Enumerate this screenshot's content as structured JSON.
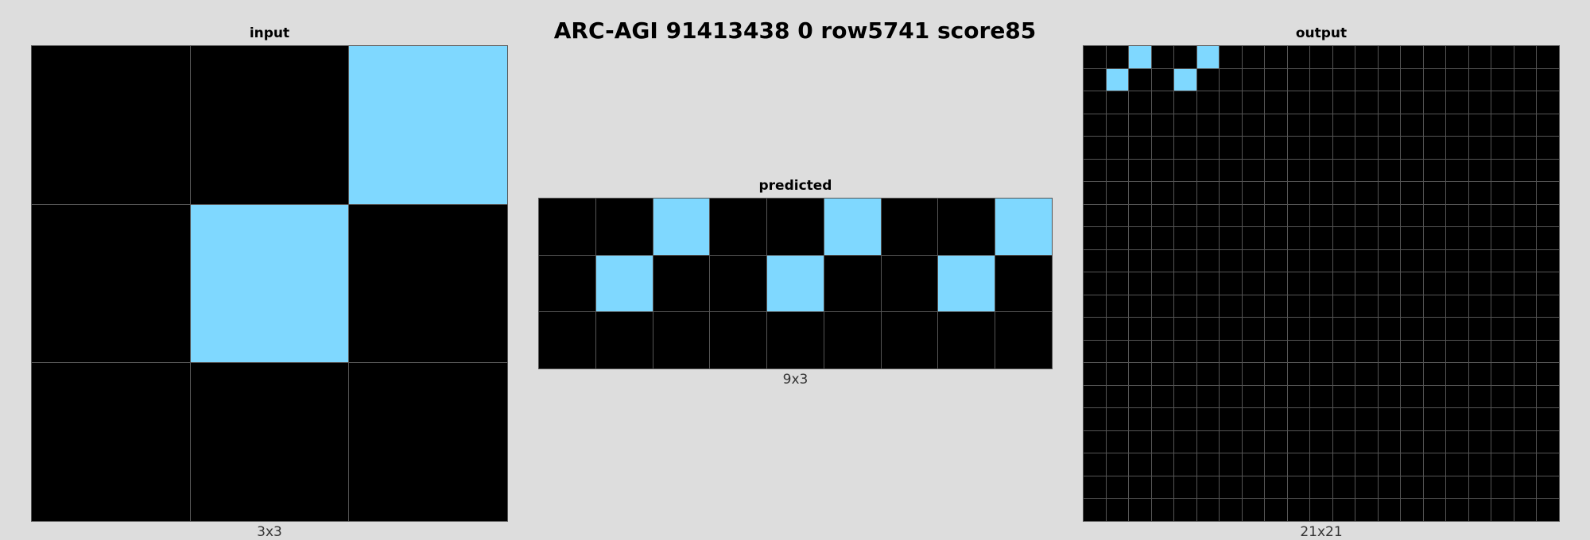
{
  "title": "ARC-AGI 91413438 0 row5741 score85",
  "colors": {
    "0": "#000000",
    "8": "#7fd8ff"
  },
  "panels": [
    {
      "id": "input",
      "label": "input",
      "size_label": "3x3",
      "rows": [
        [
          0,
          0,
          8
        ],
        [
          0,
          8,
          0
        ],
        [
          0,
          0,
          0
        ]
      ]
    },
    {
      "id": "predicted",
      "label": "predicted",
      "size_label": "9x3",
      "rows": [
        [
          0,
          0,
          8,
          0,
          0,
          8,
          0,
          0,
          8
        ],
        [
          0,
          8,
          0,
          0,
          8,
          0,
          0,
          8,
          0
        ],
        [
          0,
          0,
          0,
          0,
          0,
          0,
          0,
          0,
          0
        ]
      ]
    },
    {
      "id": "output",
      "label": "output",
      "size_label": "21x21",
      "rows": [
        [
          0,
          0,
          8,
          0,
          0,
          8,
          0,
          0,
          0,
          0,
          0,
          0,
          0,
          0,
          0,
          0,
          0,
          0,
          0,
          0,
          0
        ],
        [
          0,
          8,
          0,
          0,
          8,
          0,
          0,
          0,
          0,
          0,
          0,
          0,
          0,
          0,
          0,
          0,
          0,
          0,
          0,
          0,
          0
        ],
        [
          0,
          0,
          0,
          0,
          0,
          0,
          0,
          0,
          0,
          0,
          0,
          0,
          0,
          0,
          0,
          0,
          0,
          0,
          0,
          0,
          0
        ],
        [
          0,
          0,
          0,
          0,
          0,
          0,
          0,
          0,
          0,
          0,
          0,
          0,
          0,
          0,
          0,
          0,
          0,
          0,
          0,
          0,
          0
        ],
        [
          0,
          0,
          0,
          0,
          0,
          0,
          0,
          0,
          0,
          0,
          0,
          0,
          0,
          0,
          0,
          0,
          0,
          0,
          0,
          0,
          0
        ],
        [
          0,
          0,
          0,
          0,
          0,
          0,
          0,
          0,
          0,
          0,
          0,
          0,
          0,
          0,
          0,
          0,
          0,
          0,
          0,
          0,
          0
        ],
        [
          0,
          0,
          0,
          0,
          0,
          0,
          0,
          0,
          0,
          0,
          0,
          0,
          0,
          0,
          0,
          0,
          0,
          0,
          0,
          0,
          0
        ],
        [
          0,
          0,
          0,
          0,
          0,
          0,
          0,
          0,
          0,
          0,
          0,
          0,
          0,
          0,
          0,
          0,
          0,
          0,
          0,
          0,
          0
        ],
        [
          0,
          0,
          0,
          0,
          0,
          0,
          0,
          0,
          0,
          0,
          0,
          0,
          0,
          0,
          0,
          0,
          0,
          0,
          0,
          0,
          0
        ],
        [
          0,
          0,
          0,
          0,
          0,
          0,
          0,
          0,
          0,
          0,
          0,
          0,
          0,
          0,
          0,
          0,
          0,
          0,
          0,
          0,
          0
        ],
        [
          0,
          0,
          0,
          0,
          0,
          0,
          0,
          0,
          0,
          0,
          0,
          0,
          0,
          0,
          0,
          0,
          0,
          0,
          0,
          0,
          0
        ],
        [
          0,
          0,
          0,
          0,
          0,
          0,
          0,
          0,
          0,
          0,
          0,
          0,
          0,
          0,
          0,
          0,
          0,
          0,
          0,
          0,
          0
        ],
        [
          0,
          0,
          0,
          0,
          0,
          0,
          0,
          0,
          0,
          0,
          0,
          0,
          0,
          0,
          0,
          0,
          0,
          0,
          0,
          0,
          0
        ],
        [
          0,
          0,
          0,
          0,
          0,
          0,
          0,
          0,
          0,
          0,
          0,
          0,
          0,
          0,
          0,
          0,
          0,
          0,
          0,
          0,
          0
        ],
        [
          0,
          0,
          0,
          0,
          0,
          0,
          0,
          0,
          0,
          0,
          0,
          0,
          0,
          0,
          0,
          0,
          0,
          0,
          0,
          0,
          0
        ],
        [
          0,
          0,
          0,
          0,
          0,
          0,
          0,
          0,
          0,
          0,
          0,
          0,
          0,
          0,
          0,
          0,
          0,
          0,
          0,
          0,
          0
        ],
        [
          0,
          0,
          0,
          0,
          0,
          0,
          0,
          0,
          0,
          0,
          0,
          0,
          0,
          0,
          0,
          0,
          0,
          0,
          0,
          0,
          0
        ],
        [
          0,
          0,
          0,
          0,
          0,
          0,
          0,
          0,
          0,
          0,
          0,
          0,
          0,
          0,
          0,
          0,
          0,
          0,
          0,
          0,
          0
        ],
        [
          0,
          0,
          0,
          0,
          0,
          0,
          0,
          0,
          0,
          0,
          0,
          0,
          0,
          0,
          0,
          0,
          0,
          0,
          0,
          0,
          0
        ],
        [
          0,
          0,
          0,
          0,
          0,
          0,
          0,
          0,
          0,
          0,
          0,
          0,
          0,
          0,
          0,
          0,
          0,
          0,
          0,
          0,
          0
        ],
        [
          0,
          0,
          0,
          0,
          0,
          0,
          0,
          0,
          0,
          0,
          0,
          0,
          0,
          0,
          0,
          0,
          0,
          0,
          0,
          0,
          0
        ]
      ]
    }
  ]
}
